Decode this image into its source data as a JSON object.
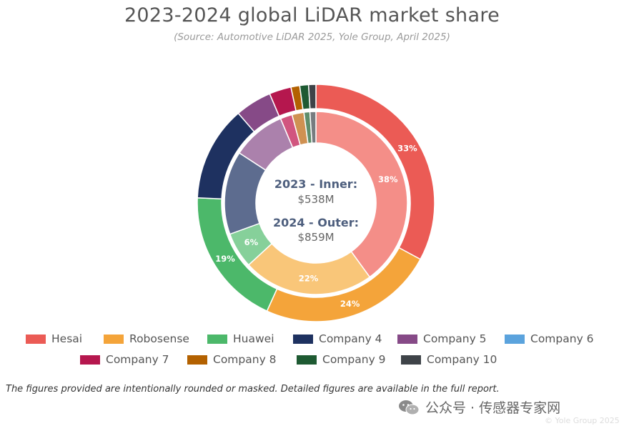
{
  "title": "2023-2024 global LiDAR market share",
  "subtitle": "(Source: Automotive LiDAR 2025, Yole Group, April 2025)",
  "center": {
    "line1": "2023 - Inner:",
    "line2": "$538M",
    "line3": "2024 - Outer:",
    "line4": "$859M"
  },
  "footnote": "The figures provided are intentionally rounded or masked. Detailed figures are available in the full report.",
  "watermark": "公众号 · 传感器专家网",
  "corner_text": "© Yole Group 2025",
  "chart_data": {
    "type": "donut",
    "title": "2023-2024 global LiDAR market share",
    "subtitle": "(Source: Automotive LiDAR 2025, Yole Group, April 2025)",
    "categories": [
      "Hesai",
      "Robosense",
      "Huawei",
      "Company 4",
      "Company 5",
      "Company 6",
      "Company 7",
      "Company 8",
      "Company 9",
      "Company 10"
    ],
    "colors": [
      "#eb5b55",
      "#f4a43a",
      "#4cb86a",
      "#1e3160",
      "#864a87",
      "#5ba3dd",
      "#b5174e",
      "#b36100",
      "#1e5a32",
      "#3e4348"
    ],
    "inner_colors": [
      "#f48e88",
      "#f9c679",
      "#86d09a",
      "#5d6c8f",
      "#ab81ac",
      "#8cc0e9",
      "#d1557f",
      "#cf9152",
      "#5f8e6b",
      "#777c80"
    ],
    "series": [
      {
        "name": "2023 - Inner",
        "total": "$538M",
        "values": [
          38,
          22,
          6,
          14,
          9,
          0,
          2,
          2,
          1,
          1
        ],
        "labels": [
          "38%",
          "22%",
          "6%",
          "",
          "",
          "",
          "",
          "",
          "",
          ""
        ]
      },
      {
        "name": "2024 - Outer",
        "total": "$859M",
        "values": [
          33,
          24,
          19,
          13,
          5,
          0,
          3,
          1.2,
          1.2,
          1
        ],
        "labels": [
          "33%",
          "24%",
          "19%",
          "",
          "",
          "",
          "",
          "",
          "",
          ""
        ]
      }
    ],
    "legend_position": "bottom"
  }
}
